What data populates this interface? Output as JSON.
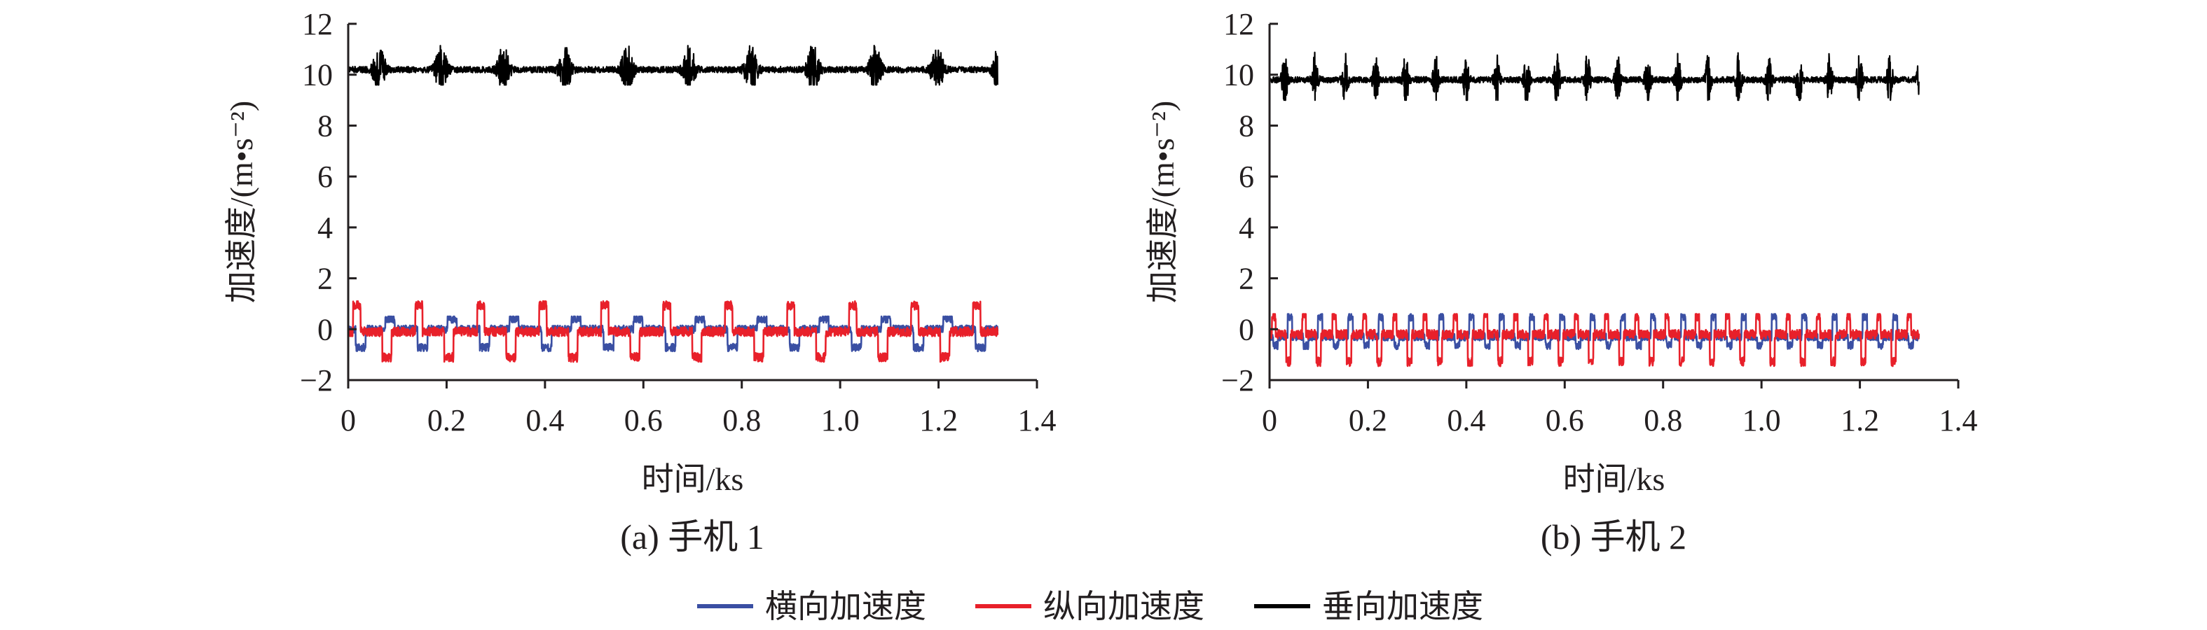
{
  "chart_data": [
    {
      "type": "line",
      "caption": "(a) 手机 1",
      "xlabel": "时间/ks",
      "ylabel": "加速度/(m•s⁻²)",
      "xlim": [
        0,
        1.4
      ],
      "ylim": [
        -2,
        12
      ],
      "x_ticks": [
        0,
        0.2,
        0.4,
        0.6,
        0.8,
        1.0,
        1.2,
        1.4
      ],
      "x_tick_labels": [
        "0",
        "0.2",
        "0.4",
        "0.6",
        "0.8",
        "1.0",
        "1.2",
        "1.4"
      ],
      "y_ticks": [
        -2,
        0,
        2,
        4,
        6,
        8,
        10,
        12
      ],
      "y_tick_labels": [
        "−2",
        "0",
        "2",
        "4",
        "6",
        "8",
        "10",
        "12"
      ],
      "grid": false,
      "data_range_x": [
        0,
        1.32
      ],
      "cycle_period_ks": 0.126,
      "series": [
        {
          "name": "横向加速度",
          "color": "#3a4fa3",
          "baseline": 0.0,
          "low": -0.9,
          "high": 0.5
        },
        {
          "name": "纵向加速度",
          "color": "#e8202a",
          "baseline": -0.1,
          "low": -1.3,
          "high": 1.1
        },
        {
          "name": "垂向加速度",
          "color": "#000000",
          "baseline": 10.2,
          "low": 9.6,
          "high": 11.4
        }
      ]
    },
    {
      "type": "line",
      "caption": "(b) 手机 2",
      "xlabel": "时间/ks",
      "ylabel": "加速度/(m•s⁻²)",
      "xlim": [
        0,
        1.4
      ],
      "ylim": [
        -2,
        12
      ],
      "x_ticks": [
        0,
        0.2,
        0.4,
        0.6,
        0.8,
        1.0,
        1.2,
        1.4
      ],
      "x_tick_labels": [
        "0",
        "0.2",
        "0.4",
        "0.6",
        "0.8",
        "1.0",
        "1.2",
        "1.4"
      ],
      "y_ticks": [
        -2,
        0,
        2,
        4,
        6,
        8,
        10,
        12
      ],
      "y_tick_labels": [
        "−2",
        "0",
        "2",
        "4",
        "6",
        "8",
        "10",
        "12"
      ],
      "grid": false,
      "data_range_x": [
        0,
        1.32
      ],
      "cycle_period_ks": 0.0615,
      "series": [
        {
          "name": "横向加速度",
          "color": "#3a4fa3",
          "baseline": -0.3,
          "low": -0.8,
          "high": 0.6
        },
        {
          "name": "纵向加速度",
          "color": "#e8202a",
          "baseline": -0.2,
          "low": -1.5,
          "high": 0.6
        },
        {
          "name": "垂向加速度",
          "color": "#000000",
          "baseline": 9.8,
          "low": 9.0,
          "high": 11.0
        }
      ]
    }
  ],
  "legend": {
    "placement": "bottom",
    "entries": [
      {
        "label": "横向加速度",
        "color": "#3a4fa3"
      },
      {
        "label": "纵向加速度",
        "color": "#e8202a"
      },
      {
        "label": "垂向加速度",
        "color": "#000000"
      }
    ]
  }
}
